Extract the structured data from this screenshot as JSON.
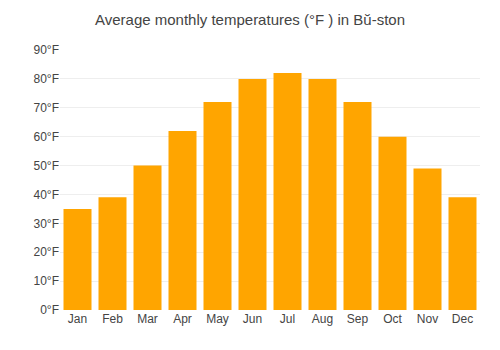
{
  "chart_data": {
    "type": "bar",
    "title": "Average monthly temperatures (°F ) in Bŭ-ston",
    "categories": [
      "Jan",
      "Feb",
      "Mar",
      "Apr",
      "May",
      "Jun",
      "Jul",
      "Aug",
      "Sep",
      "Oct",
      "Nov",
      "Dec"
    ],
    "values": [
      35,
      39,
      50,
      62,
      72,
      80,
      82,
      80,
      72,
      60,
      49,
      39
    ],
    "color": "#FFA500",
    "ylim": [
      0,
      90
    ],
    "yticks": [
      {
        "value": 0,
        "label": "0°F"
      },
      {
        "value": 10,
        "label": "10°F"
      },
      {
        "value": 20,
        "label": "20°F"
      },
      {
        "value": 30,
        "label": "30°F"
      },
      {
        "value": 40,
        "label": "40°F"
      },
      {
        "value": 50,
        "label": "50°F"
      },
      {
        "value": 60,
        "label": "60°F"
      },
      {
        "value": 70,
        "label": "70°F"
      },
      {
        "value": 80,
        "label": "80°F"
      },
      {
        "value": 90,
        "label": "90°F"
      }
    ],
    "grid": true
  }
}
